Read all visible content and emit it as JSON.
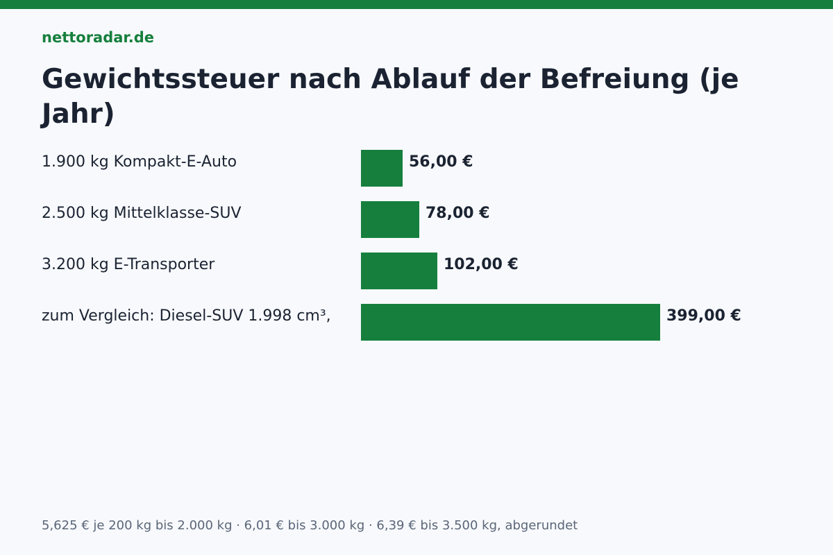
{
  "brand": "nettoradar.de",
  "colors": {
    "accent": "#167f3d",
    "text": "#1b2332",
    "muted": "#5b6678",
    "background": "#f7f9fc"
  },
  "footnote": "5,625 € je 200 kg bis 2.000 kg · 6,01 € bis 3.000 kg · 6,39 € bis 3.500 kg, abgerundet",
  "chart_data": {
    "type": "bar",
    "orientation": "horizontal",
    "title": "Gewichtssteuer nach Ablauf der Befreiung (je Jahr)",
    "categories": [
      "1.900 kg Kompakt-E-Auto",
      "2.500 kg Mittelklasse-SUV",
      "3.200 kg E-Transporter",
      "zum Vergleich: Diesel-SUV 1.998 cm³,"
    ],
    "values": [
      56,
      78,
      102,
      399
    ],
    "value_labels": [
      "56,00 €",
      "78,00 €",
      "102,00 €",
      "399,00 €"
    ],
    "xlim": [
      0,
      399
    ],
    "grid": false,
    "legend": "none"
  }
}
